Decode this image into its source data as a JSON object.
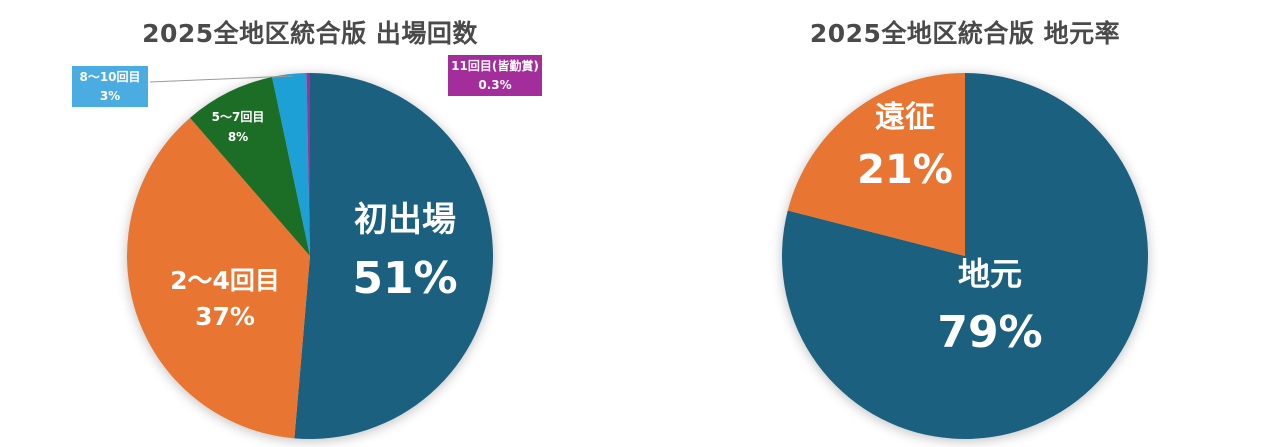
{
  "chart_data": [
    {
      "type": "pie",
      "title": "2025全地区統合版 出場回数",
      "categories": [
        "初出場",
        "2〜4回目",
        "5〜7回目",
        "8〜10回目",
        "11回目(皆勤賞)"
      ],
      "values": [
        51,
        37,
        8,
        3,
        0.3
      ],
      "value_labels": [
        "51%",
        "37%",
        "8%",
        "3%",
        "0.3%"
      ],
      "colors": [
        "#1a6080",
        "#e87530",
        "#1e6e28",
        "#1ea0d6",
        "#a42d9c"
      ],
      "start_angle": "12 o'clock, clockwise",
      "legend": "none (data labels on slices / callout boxes)"
    },
    {
      "type": "pie",
      "title": "2025全地区統合版 地元率",
      "categories": [
        "地元",
        "遠征"
      ],
      "values": [
        79,
        21
      ],
      "value_labels": [
        "79%",
        "21%"
      ],
      "colors": [
        "#1a6080",
        "#e87530"
      ],
      "start_angle": "12 o'clock, clockwise",
      "legend": "none (data labels on slices)"
    }
  ],
  "left": {
    "title": "2025全地区統合版 出場回数",
    "slices": [
      {
        "name": "初出場",
        "pct": "51%"
      },
      {
        "name": "2〜4回目",
        "pct": "37%"
      },
      {
        "name": "5〜7回目",
        "pct": "8%"
      },
      {
        "name": "8〜10回目",
        "pct": "3%"
      },
      {
        "name": "11回目(皆勤賞)",
        "pct": "0.3%"
      }
    ]
  },
  "right": {
    "title": "2025全地区統合版 地元率",
    "slices": [
      {
        "name": "地元",
        "pct": "79%"
      },
      {
        "name": "遠征",
        "pct": "21%"
      }
    ]
  }
}
